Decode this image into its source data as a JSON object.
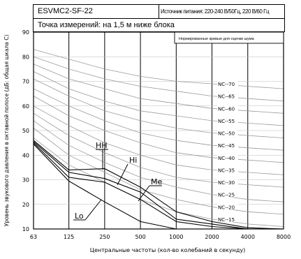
{
  "header": {
    "model": "ESVMC2-SF-22",
    "power_supply": "Источник питания: 220-240 В/50Гц, 220 В/60 Гц",
    "measurement_point": "Точка измерений: на 1,5 м ниже блока"
  },
  "chart_data": {
    "type": "line",
    "xscale": "log2",
    "xlim": [
      63,
      8000
    ],
    "ylim": [
      10,
      90
    ],
    "x_ticks": [
      "63",
      "125",
      "250",
      "500",
      "1000",
      "2000",
      "4000",
      "8000"
    ],
    "y_ticks": [
      "10",
      "20",
      "30",
      "40",
      "50",
      "60",
      "70",
      "80",
      "90"
    ],
    "xlabel": "Центральные частоты (кол-во колебаний в секунду)",
    "ylabel": "Уровень звукового давления в октавной полосе (дБ: общая шкала С)",
    "nc_box_title": "Нормированные кривые для оценки шума",
    "grid": true,
    "nc_curves": [
      {
        "name": "NC--70",
        "x": [
          63,
          125,
          250,
          500,
          1000,
          2000,
          4000,
          8000
        ],
        "y": [
          83,
          79,
          75,
          72,
          70,
          69,
          68,
          67
        ]
      },
      {
        "name": "NC--65",
        "x": [
          63,
          125,
          250,
          500,
          1000,
          2000,
          4000,
          8000
        ],
        "y": [
          80,
          75,
          71,
          68,
          66,
          64,
          63,
          62
        ]
      },
      {
        "name": "NC--60",
        "x": [
          63,
          125,
          250,
          500,
          1000,
          2000,
          4000,
          8000
        ],
        "y": [
          77,
          71,
          67,
          63,
          61,
          59,
          58,
          57
        ]
      },
      {
        "name": "NC--55",
        "x": [
          63,
          125,
          250,
          500,
          1000,
          2000,
          4000,
          8000
        ],
        "y": [
          74,
          67,
          62,
          58,
          56,
          54,
          53,
          52
        ]
      },
      {
        "name": "NC--50",
        "x": [
          63,
          125,
          250,
          500,
          1000,
          2000,
          4000,
          8000
        ],
        "y": [
          71,
          64,
          58,
          54,
          51,
          49,
          48,
          47
        ]
      },
      {
        "name": "NC--45",
        "x": [
          63,
          125,
          250,
          500,
          1000,
          2000,
          4000,
          8000
        ],
        "y": [
          67,
          60,
          54,
          49,
          46,
          44,
          43,
          42
        ]
      },
      {
        "name": "NC--40",
        "x": [
          63,
          125,
          250,
          500,
          1000,
          2000,
          4000,
          8000
        ],
        "y": [
          64,
          56,
          50,
          45,
          41,
          39,
          38,
          37
        ]
      },
      {
        "name": "NC--35",
        "x": [
          63,
          125,
          250,
          500,
          1000,
          2000,
          4000,
          8000
        ],
        "y": [
          60,
          52,
          45,
          40,
          36,
          34,
          33,
          32
        ]
      },
      {
        "name": "NC--30",
        "x": [
          63,
          125,
          250,
          500,
          1000,
          2000,
          4000,
          8000
        ],
        "y": [
          57,
          48,
          41,
          35,
          31,
          29,
          28,
          27
        ]
      },
      {
        "name": "NC--25",
        "x": [
          63,
          125,
          250,
          500,
          1000,
          2000,
          4000,
          8000
        ],
        "y": [
          54,
          44,
          37,
          31,
          27,
          24,
          22,
          21
        ]
      },
      {
        "name": "NC--20",
        "x": [
          63,
          125,
          250,
          500,
          1000,
          2000,
          4000,
          8000
        ],
        "y": [
          51,
          40,
          33,
          26,
          22,
          19,
          17,
          16
        ]
      },
      {
        "name": "NC--15",
        "x": [
          63,
          125,
          250,
          500,
          1000,
          2000,
          4000,
          8000
        ],
        "y": [
          47,
          36,
          29,
          22,
          17,
          14,
          12,
          11
        ]
      }
    ],
    "series": [
      {
        "name": "HH",
        "x": [
          63,
          125,
          250,
          500,
          1000,
          2000,
          4000,
          8000
        ],
        "y": [
          46,
          34,
          34.5,
          27,
          17,
          13,
          10.5,
          10
        ]
      },
      {
        "name": "Hi",
        "x": [
          63,
          125,
          250,
          500,
          1000,
          2000,
          4000,
          8000
        ],
        "y": [
          45.5,
          33,
          30.5,
          25,
          14,
          12,
          10,
          10
        ]
      },
      {
        "name": "Me",
        "x": [
          63,
          125,
          250,
          500,
          1000,
          2000,
          4000,
          8000
        ],
        "y": [
          45,
          31,
          29,
          22,
          13,
          11,
          10,
          10
        ]
      },
      {
        "name": "Lo",
        "x": [
          63,
          125,
          250,
          500,
          1000,
          2000,
          4000,
          8000
        ],
        "y": [
          44.5,
          29.5,
          21,
          13,
          10,
          10,
          10,
          10
        ]
      }
    ]
  }
}
